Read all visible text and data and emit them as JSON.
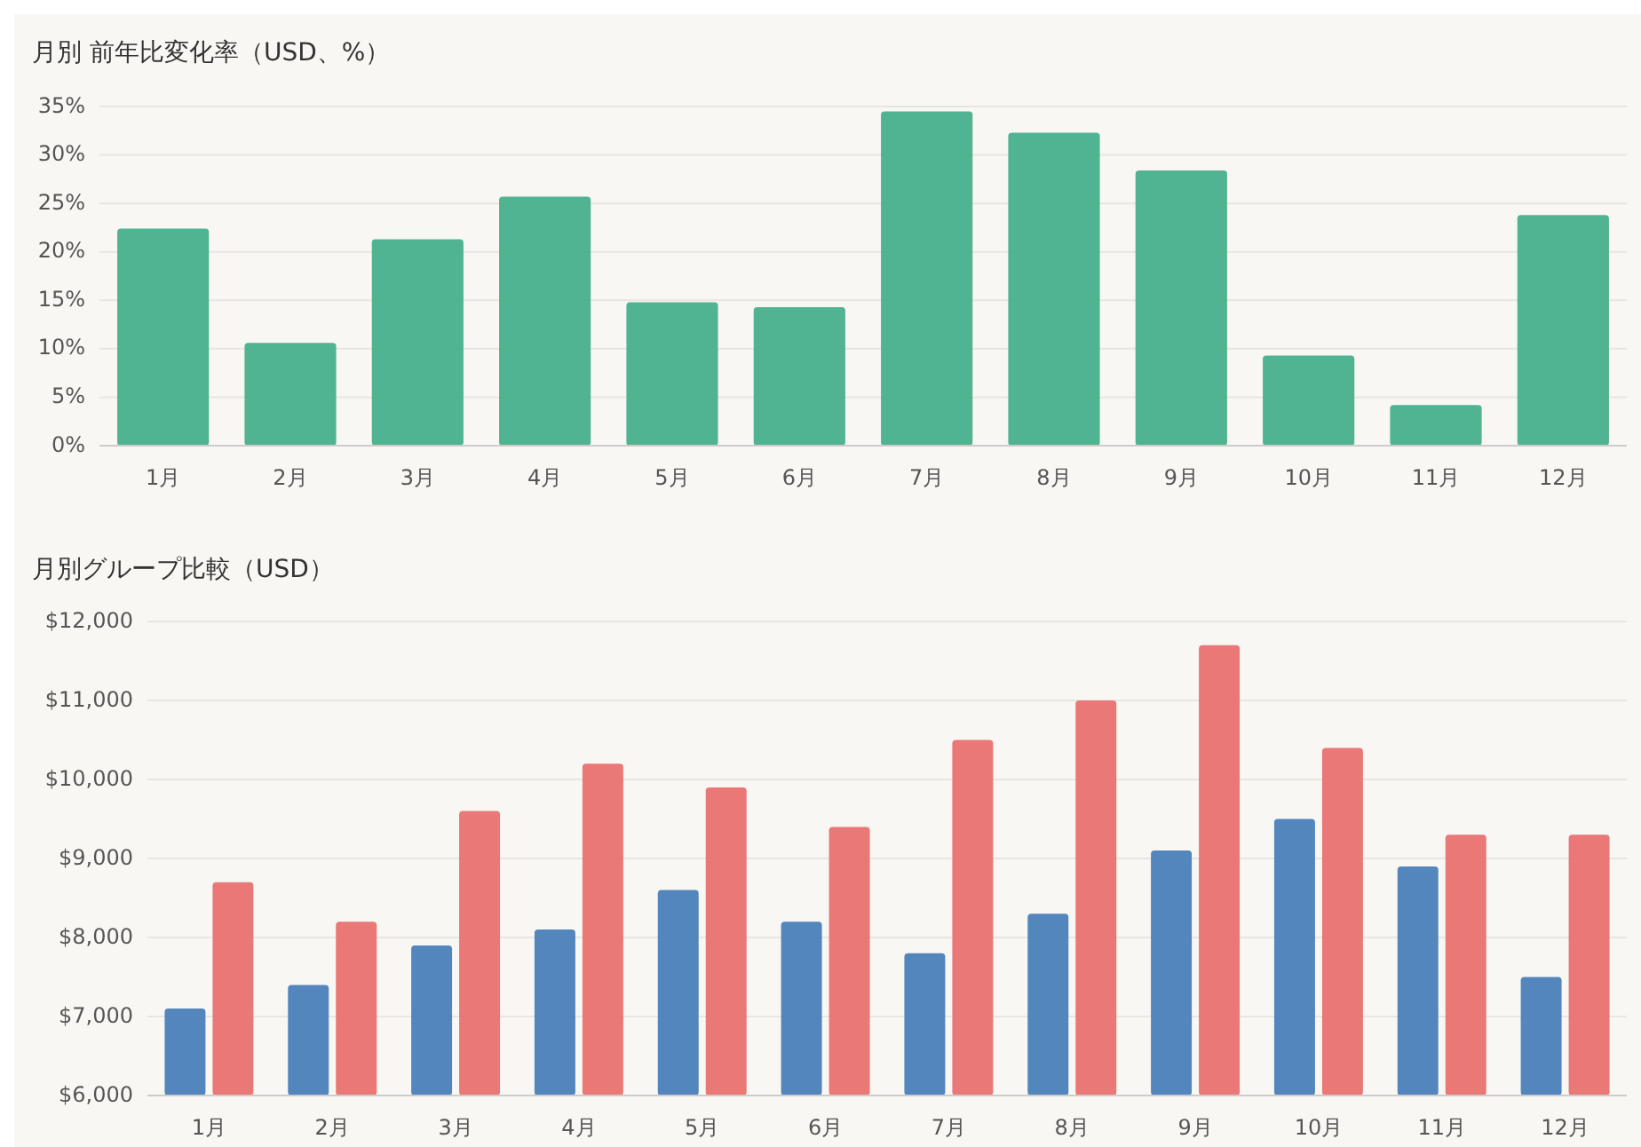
{
  "chart_data": [
    {
      "type": "bar",
      "title": "月別 前年比変化率（USD、%）",
      "categories": [
        "1月",
        "2月",
        "3月",
        "4月",
        "5月",
        "6月",
        "7月",
        "8月",
        "9月",
        "10月",
        "11月",
        "12月"
      ],
      "series": [
        {
          "color": "#47b08c",
          "values": [
            22.4,
            10.6,
            21.3,
            25.7,
            14.8,
            14.3,
            34.5,
            32.3,
            28.4,
            9.3,
            4.2,
            23.8
          ]
        }
      ],
      "ylim": [
        0,
        35
      ],
      "yticks": [
        {
          "value": 0,
          "label": "0%"
        },
        {
          "value": 5,
          "label": "5%"
        },
        {
          "value": 10,
          "label": "10%"
        },
        {
          "value": 15,
          "label": "15%"
        },
        {
          "value": 20,
          "label": "20%"
        },
        {
          "value": 25,
          "label": "25%"
        },
        {
          "value": 30,
          "label": "30%"
        },
        {
          "value": 35,
          "label": "35%"
        }
      ],
      "grid": "y"
    },
    {
      "type": "bar",
      "title": "月別グループ比較（USD）",
      "categories": [
        "1月",
        "2月",
        "3月",
        "4月",
        "5月",
        "6月",
        "7月",
        "8月",
        "9月",
        "10月",
        "11月",
        "12月"
      ],
      "series": [
        {
          "color": "#4a7fb9",
          "values": [
            7100,
            7400,
            7900,
            8100,
            8600,
            8200,
            7800,
            8300,
            9100,
            9500,
            8900,
            7500
          ]
        },
        {
          "color": "#e8716f",
          "values": [
            8700,
            8200,
            9600,
            10200,
            9900,
            9400,
            10500,
            11000,
            11700,
            10400,
            9300,
            9300
          ]
        }
      ],
      "ylim": [
        6000,
        12000
      ],
      "yticks": [
        {
          "value": 6000,
          "label": "$6,000"
        },
        {
          "value": 7000,
          "label": "$7,000"
        },
        {
          "value": 8000,
          "label": "$8,000"
        },
        {
          "value": 9000,
          "label": "$9,000"
        },
        {
          "value": 10000,
          "label": "$10,000"
        },
        {
          "value": 11000,
          "label": "$11,000"
        },
        {
          "value": 12000,
          "label": "$12,000"
        }
      ],
      "grid": "y"
    }
  ]
}
